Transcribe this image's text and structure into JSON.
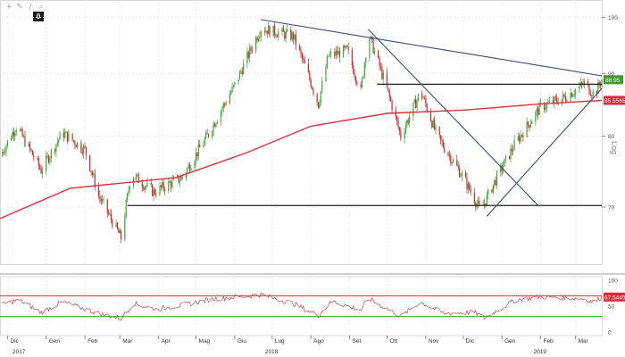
{
  "toolbar": {
    "icons": [
      "plus-icon",
      "pencil-icon",
      "line-tool-icon",
      "zoom-icon"
    ],
    "zoom_badge": "0"
  },
  "colors": {
    "up_candle": "#3aa83a",
    "down_candle": "#c03030",
    "moving_average": "#e0303c",
    "trendline_dark": "#222222",
    "trendline_blue": "#30507a",
    "rsi_line": "#d04050",
    "rsi_upper": "#e03030",
    "rsi_lower": "#3aaa3a",
    "badge_price": "#3f9a2a",
    "badge_ma": "#d8283a"
  },
  "chart_data": {
    "type": "candlestick",
    "scale": "log",
    "scale_label": "Log",
    "grid": true,
    "y_ticks": [
      "100",
      "90",
      "80",
      "70"
    ],
    "y_tick_values": [
      100,
      90,
      80,
      70
    ],
    "ylim": [
      63.5,
      103
    ],
    "x_ticks": [
      "Dic",
      "Gen",
      "Feb",
      "Mar",
      "Apr",
      "Mag",
      "Giu",
      "Lug",
      "Ago",
      "Set",
      "Ott",
      "Nov",
      "Dic",
      "Gen",
      "Feb",
      "Mar"
    ],
    "years": [
      "2017",
      "2018",
      "2019"
    ],
    "last_price": "88.95",
    "last_price_value": 88.95,
    "moving_average_last": "85.5565",
    "moving_average_last_value": 85.5565,
    "anchors": [
      [
        "2017-11-25",
        77
      ],
      [
        "2017-12-08",
        81.5
      ],
      [
        "2017-12-28",
        75
      ],
      [
        "2018-01-14",
        80.5
      ],
      [
        "2018-02-01",
        78
      ],
      [
        "2018-02-12",
        71.5
      ],
      [
        "2018-03-02",
        66
      ],
      [
        "2018-03-10",
        74.5
      ],
      [
        "2018-03-28",
        72
      ],
      [
        "2018-04-20",
        74
      ],
      [
        "2018-05-10",
        80
      ],
      [
        "2018-06-01",
        88
      ],
      [
        "2018-06-22",
        98
      ],
      [
        "2018-07-18",
        96.5
      ],
      [
        "2018-08-07",
        85
      ],
      [
        "2018-08-15",
        93
      ],
      [
        "2018-08-30",
        94
      ],
      [
        "2018-09-10",
        87
      ],
      [
        "2018-09-16",
        97
      ],
      [
        "2018-10-03",
        86
      ],
      [
        "2018-10-12",
        80
      ],
      [
        "2018-10-28",
        87
      ],
      [
        "2018-11-10",
        80
      ],
      [
        "2018-12-01",
        74
      ],
      [
        "2018-12-15",
        69.5
      ],
      [
        "2018-12-25",
        73
      ],
      [
        "2019-01-12",
        79
      ],
      [
        "2019-02-01",
        84.5
      ],
      [
        "2019-02-20",
        86
      ],
      [
        "2019-03-08",
        88.3
      ],
      [
        "2019-03-16",
        86.5
      ],
      [
        "2019-03-22",
        88.95
      ]
    ],
    "moving_average": [
      [
        "2017-11-25",
        68.5
      ],
      [
        "2018-01-20",
        72.5
      ],
      [
        "2018-04-15",
        74
      ],
      [
        "2018-06-10",
        77.5
      ],
      [
        "2018-08-01",
        81.5
      ],
      [
        "2018-10-01",
        83.5
      ],
      [
        "2018-12-01",
        84
      ],
      [
        "2019-02-01",
        85
      ],
      [
        "2019-03-22",
        85.5565
      ]
    ],
    "trendlines": [
      {
        "style": "dark",
        "points": [
          [
            "2018-03-07",
            70.2
          ],
          [
            "2019-03-22",
            70.2
          ]
        ]
      },
      {
        "style": "dark",
        "points": [
          [
            "2018-09-23",
            88.2
          ],
          [
            "2019-03-22",
            88.2
          ]
        ]
      },
      {
        "style": "blue",
        "points": [
          [
            "2018-06-22",
            99.6
          ],
          [
            "2019-03-22",
            89.6
          ]
        ]
      },
      {
        "style": "blue",
        "points": [
          [
            "2018-09-16",
            97.8
          ],
          [
            "2019-01-30",
            70.2
          ]
        ]
      },
      {
        "style": "blue",
        "points": [
          [
            "2018-12-20",
            68.8
          ],
          [
            "2019-03-22",
            87.5
          ]
        ]
      }
    ],
    "rsi": {
      "ticks": [
        "100",
        "50",
        "0"
      ],
      "tick_values": [
        100,
        50,
        0
      ],
      "upper_level": 70,
      "lower_level": 30,
      "last": "67.5445",
      "last_value": 67.5445,
      "points": [
        [
          "2017-11-25",
          52
        ],
        [
          "2017-12-10",
          62
        ],
        [
          "2017-12-28",
          38
        ],
        [
          "2018-01-14",
          58
        ],
        [
          "2018-02-12",
          36
        ],
        [
          "2018-03-02",
          26
        ],
        [
          "2018-03-12",
          55
        ],
        [
          "2018-03-30",
          44
        ],
        [
          "2018-04-20",
          52
        ],
        [
          "2018-05-15",
          64
        ],
        [
          "2018-06-05",
          68
        ],
        [
          "2018-06-22",
          72
        ],
        [
          "2018-07-18",
          55
        ],
        [
          "2018-08-07",
          32
        ],
        [
          "2018-08-18",
          60
        ],
        [
          "2018-09-10",
          42
        ],
        [
          "2018-09-16",
          65
        ],
        [
          "2018-10-12",
          30
        ],
        [
          "2018-10-28",
          58
        ],
        [
          "2018-11-15",
          36
        ],
        [
          "2018-12-10",
          38
        ],
        [
          "2018-12-18",
          27
        ],
        [
          "2019-01-12",
          62
        ],
        [
          "2019-02-01",
          68
        ],
        [
          "2019-02-20",
          66
        ],
        [
          "2019-03-08",
          64
        ],
        [
          "2019-03-16",
          58
        ],
        [
          "2019-03-22",
          67.5445
        ]
      ]
    }
  }
}
